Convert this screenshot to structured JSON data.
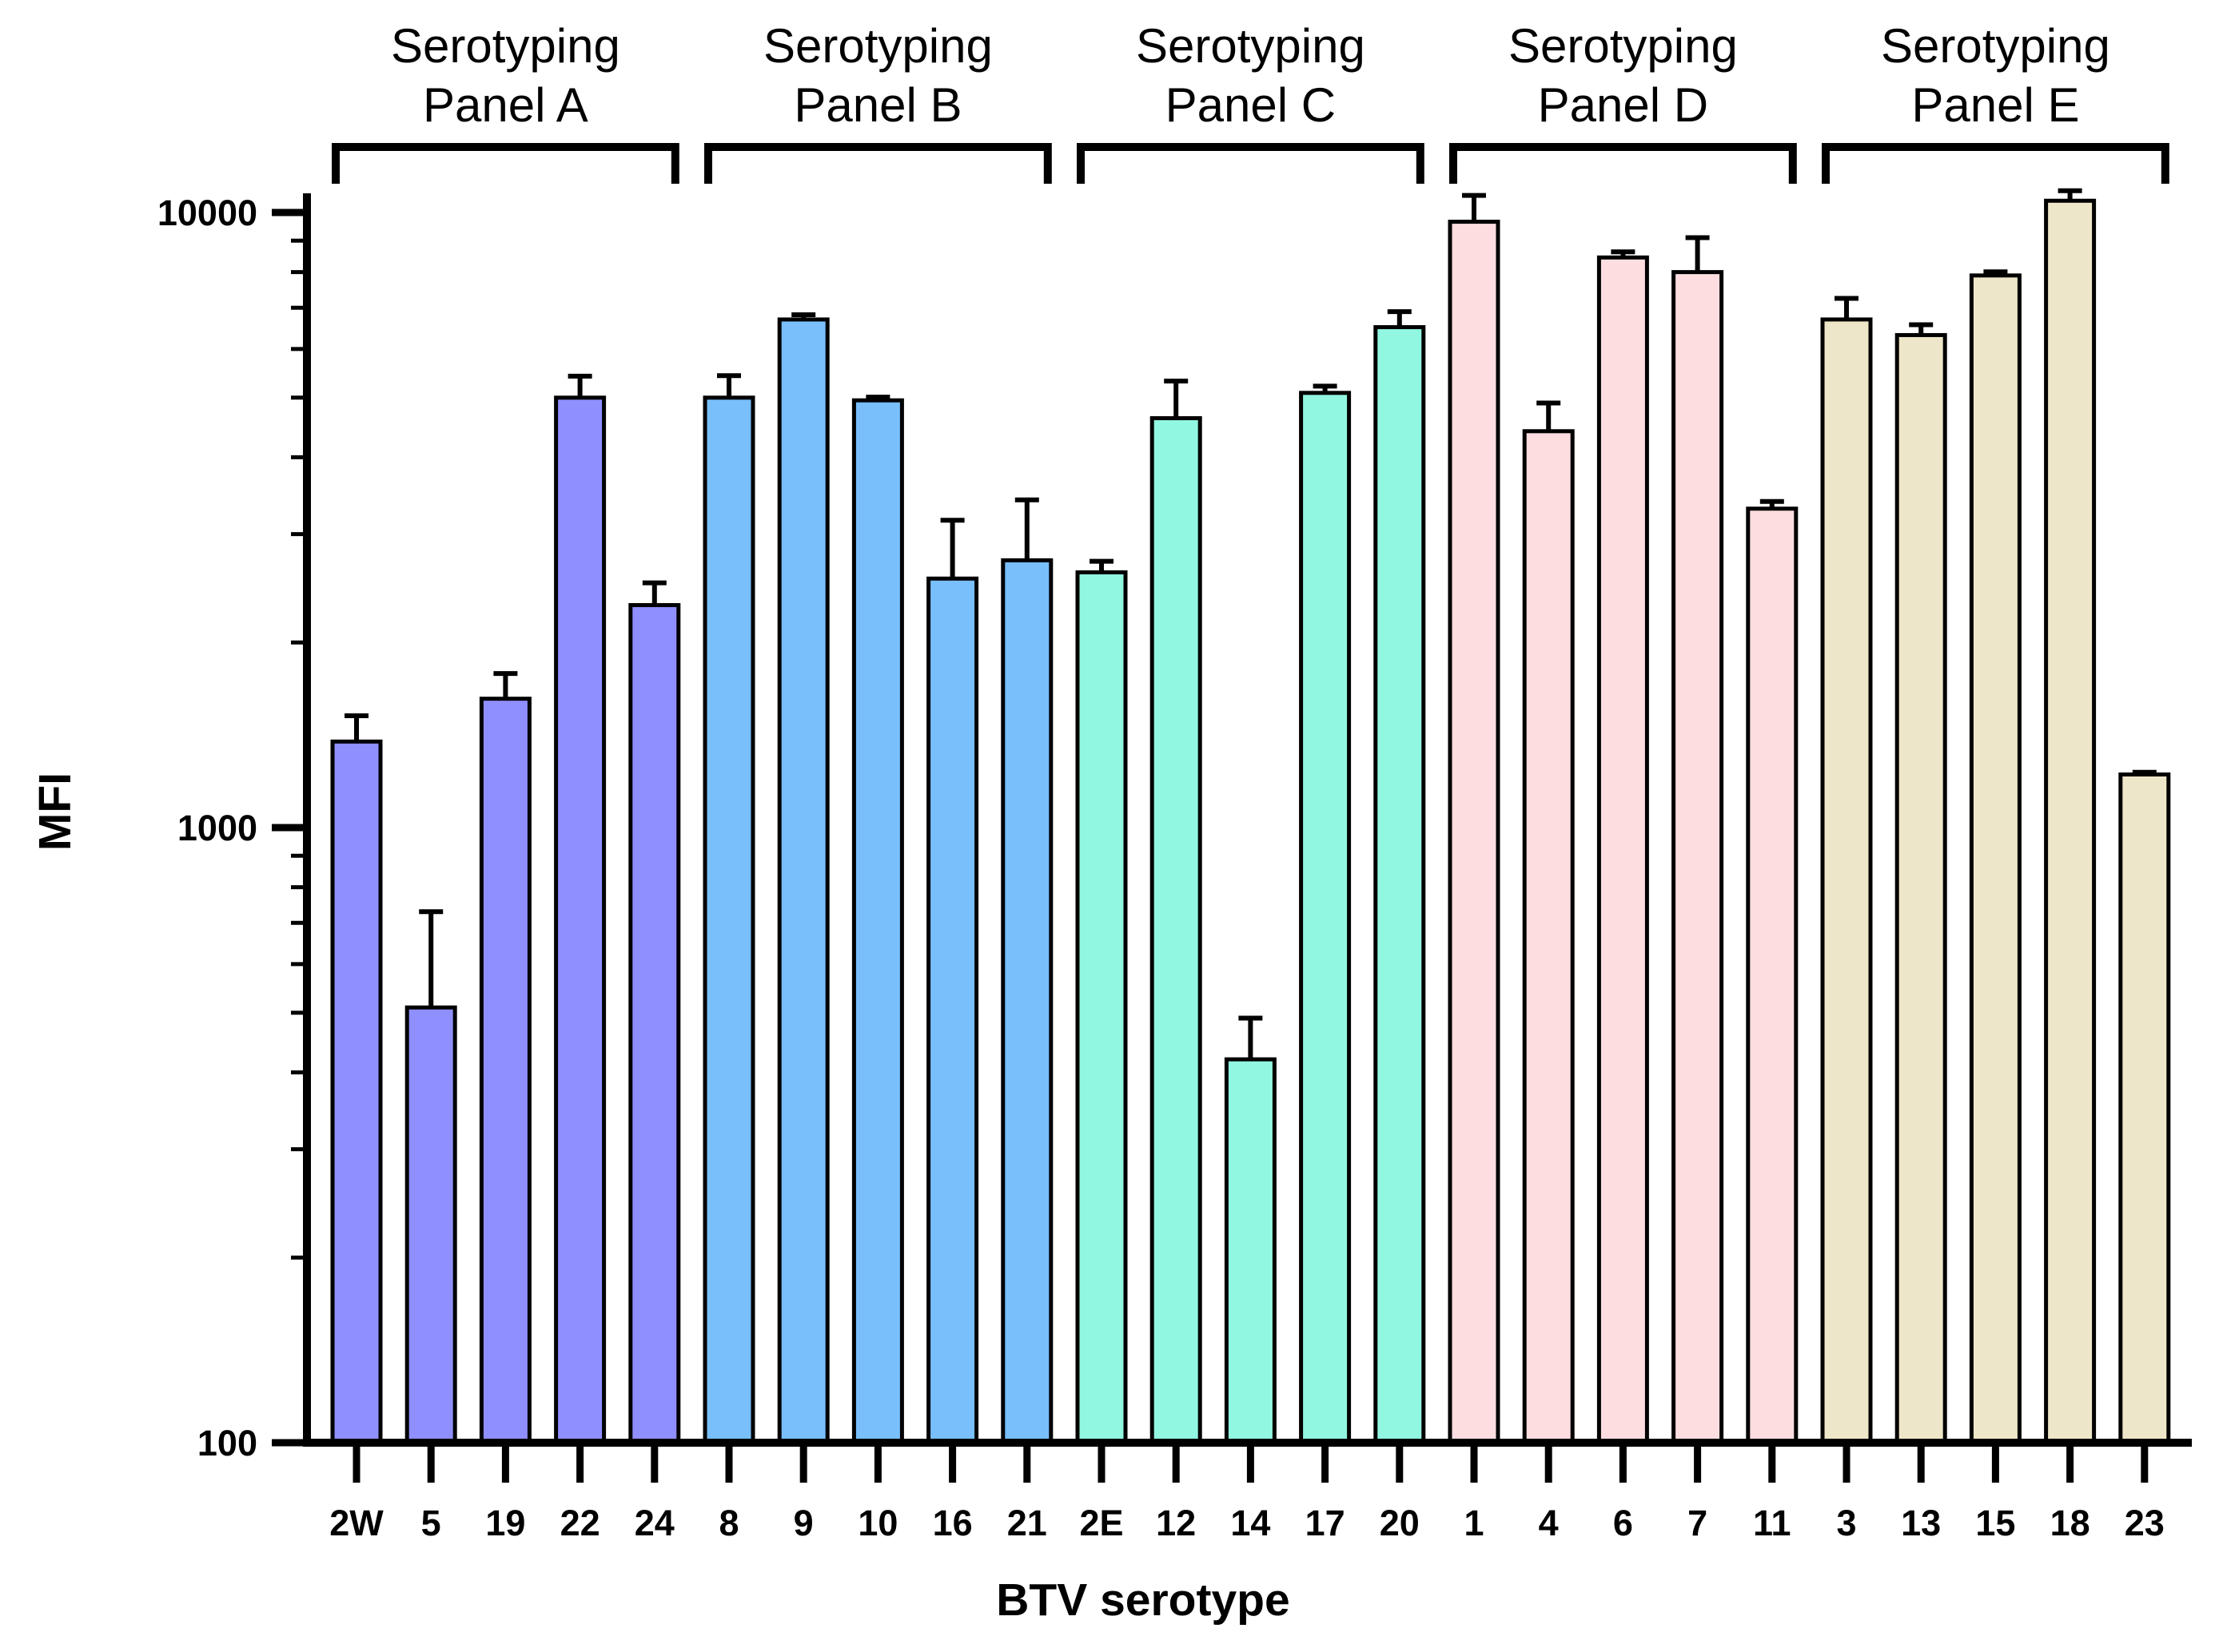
{
  "chart_data": {
    "type": "bar",
    "xlabel": "BTV serotype",
    "ylabel": "MFI",
    "yscale": "log",
    "ylim": [
      100,
      10000
    ],
    "yticks": [
      {
        "value": 100,
        "label": "100"
      },
      {
        "value": 1000,
        "label": "1000"
      },
      {
        "value": 10000,
        "label": "10000"
      }
    ],
    "panels": [
      {
        "line1": "Serotyping",
        "line2": "Panel A",
        "color": "#8F8FFF",
        "categories": [
          "2W",
          "5",
          "19",
          "22",
          "24"
        ],
        "values": [
          1380,
          510,
          1620,
          5000,
          2300
        ],
        "errors": [
          140,
          220,
          160,
          420,
          200
        ]
      },
      {
        "line1": "Serotyping",
        "line2": "Panel B",
        "color": "#78BFFC",
        "categories": [
          "8",
          "9",
          "10",
          "16",
          "21"
        ],
        "values": [
          5000,
          6700,
          4950,
          2540,
          2720
        ],
        "errors": [
          430,
          120,
          60,
          620,
          690
        ]
      },
      {
        "line1": "Serotyping",
        "line2": "Panel C",
        "color": "#92F7E1",
        "categories": [
          "2E",
          "12",
          "14",
          "17",
          "20"
        ],
        "values": [
          2600,
          4630,
          420,
          5090,
          6510
        ],
        "errors": [
          110,
          690,
          70,
          130,
          390
        ]
      },
      {
        "line1": "Serotyping",
        "line2": "Panel D",
        "color": "#FDDDE0",
        "categories": [
          "1",
          "4",
          "6",
          "7",
          "11"
        ],
        "values": [
          9660,
          4410,
          8450,
          8000,
          3300
        ],
        "errors": [
          1000,
          490,
          180,
          1100,
          90
        ]
      },
      {
        "line1": "Serotyping",
        "line2": "Panel E",
        "color": "#EEE6C8",
        "categories": [
          "3",
          "13",
          "15",
          "18",
          "23"
        ],
        "values": [
          6700,
          6320,
          7900,
          10450,
          1220
        ],
        "errors": [
          550,
          250,
          110,
          400,
          10
        ]
      }
    ]
  }
}
